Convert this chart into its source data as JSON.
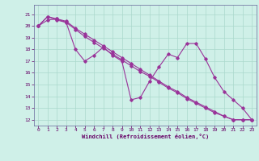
{
  "bg_color": "#cff0e8",
  "grid_color": "#aad8cc",
  "line_color": "#993399",
  "xlim": [
    -0.5,
    23.5
  ],
  "ylim": [
    11.5,
    21.8
  ],
  "yticks": [
    12,
    13,
    14,
    15,
    16,
    17,
    18,
    19,
    20,
    21
  ],
  "xticks": [
    0,
    1,
    2,
    3,
    4,
    5,
    6,
    7,
    8,
    9,
    10,
    11,
    12,
    13,
    14,
    15,
    16,
    17,
    18,
    19,
    20,
    21,
    22,
    23
  ],
  "xlabel": "Windchill (Refroidissement éolien,°C)",
  "series1": [
    20.0,
    20.8,
    20.5,
    20.3,
    18.0,
    17.0,
    17.5,
    18.2,
    17.5,
    17.0,
    13.7,
    13.9,
    15.3,
    16.5,
    17.6,
    17.3,
    18.5,
    18.5,
    17.2,
    15.6,
    14.4,
    13.7,
    13.0,
    12.0
  ],
  "series2": [
    20.0,
    20.8,
    20.6,
    20.4,
    19.8,
    19.3,
    18.8,
    18.3,
    17.8,
    17.3,
    16.8,
    16.3,
    15.8,
    15.3,
    14.8,
    14.4,
    13.9,
    13.5,
    13.1,
    12.7,
    12.3,
    12.0,
    12.0,
    12.0
  ],
  "series3": [
    20.0,
    20.5,
    20.6,
    20.3,
    19.7,
    19.1,
    18.6,
    18.1,
    17.6,
    17.1,
    16.6,
    16.1,
    15.7,
    15.2,
    14.7,
    14.3,
    13.8,
    13.4,
    13.0,
    12.6,
    12.3,
    12.0,
    12.0,
    12.0
  ]
}
